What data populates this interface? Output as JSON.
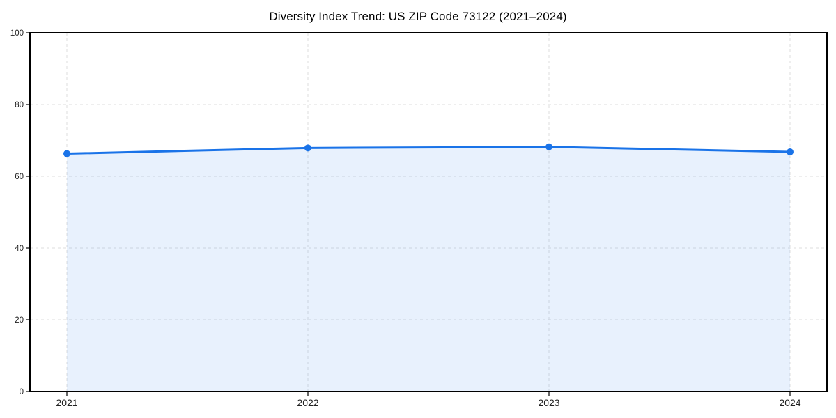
{
  "page": {
    "background": "#ffffff"
  },
  "chart_data": {
    "type": "area",
    "title": "Diversity Index Trend: US ZIP Code 73122 (2021–2024)",
    "xlabel": "",
    "ylabel": "",
    "categories": [
      "2021",
      "2022",
      "2023",
      "2024"
    ],
    "series": [
      {
        "name": "Diversity Index",
        "values": [
          66.3,
          67.9,
          68.2,
          66.8
        ]
      }
    ],
    "ylim": [
      0,
      100
    ],
    "yticks": [
      0,
      20,
      40,
      60,
      80,
      100
    ],
    "grid": true,
    "grid_style": "dashed",
    "legend": "none",
    "marker": "circle",
    "colors": {
      "line": "#1a73e8",
      "marker": "#1a73e8",
      "area_fill": "rgba(26,115,232,0.10)",
      "grid": "#dedede",
      "spine": "#000000",
      "tick": "#000000",
      "tick_label": "#222222",
      "title": "#000000"
    }
  }
}
